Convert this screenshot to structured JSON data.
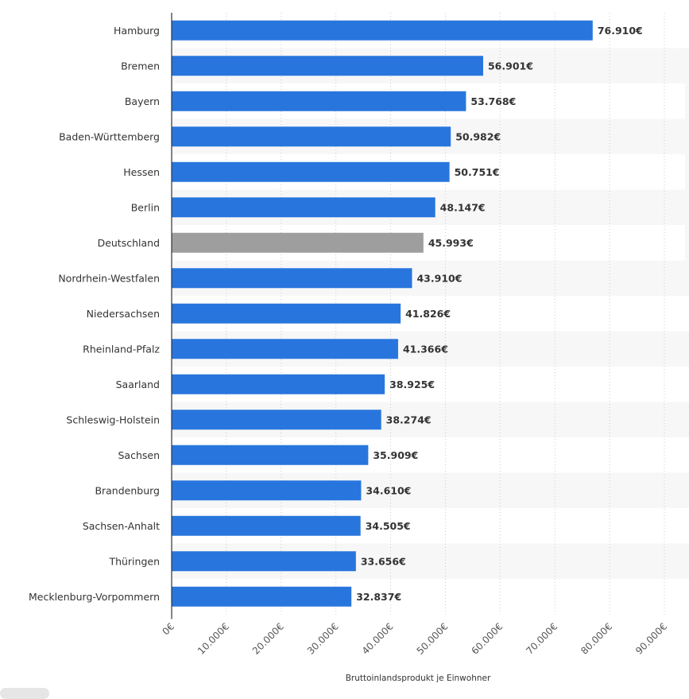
{
  "chart_data": {
    "type": "bar",
    "orientation": "horizontal",
    "categories": [
      "Hamburg",
      "Bremen",
      "Bayern",
      "Baden-Württemberg",
      "Hessen",
      "Berlin",
      "Deutschland",
      "Nordrhein-Westfalen",
      "Niedersachsen",
      "Rheinland-Pfalz",
      "Saarland",
      "Schleswig-Holstein",
      "Sachsen",
      "Brandenburg",
      "Sachsen-Anhalt",
      "Thüringen",
      "Mecklenburg-Vorpommern"
    ],
    "values": [
      76910,
      56901,
      53768,
      50982,
      50751,
      48147,
      45993,
      43910,
      41826,
      41366,
      38925,
      38274,
      35909,
      34610,
      34505,
      33656,
      32837
    ],
    "value_labels": [
      "76.910€",
      "56.901€",
      "53.768€",
      "50.982€",
      "50.751€",
      "48.147€",
      "45.993€",
      "43.910€",
      "41.826€",
      "41.366€",
      "38.925€",
      "38.274€",
      "35.909€",
      "34.610€",
      "34.505€",
      "33.656€",
      "32.837€"
    ],
    "highlight_category": "Deutschland",
    "xlabel": "Bruttoinlandsprodukt je Einwohner",
    "xlim": [
      0,
      90000
    ],
    "x_ticks": [
      0,
      10000,
      20000,
      30000,
      40000,
      50000,
      60000,
      70000,
      80000,
      90000
    ],
    "x_tick_labels": [
      "0€",
      "10.000€",
      "20.000€",
      "30.000€",
      "40.000€",
      "50.000€",
      "60.000€",
      "70.000€",
      "80.000€",
      "90.000€"
    ],
    "grid": "vertical-dotted",
    "alternating_row_background": true,
    "colors": {
      "bar": "#2876dd",
      "highlight": "#9e9e9e",
      "row_alt": "#f7f7f7",
      "grid": "#cccccc",
      "axis": "#333333"
    }
  }
}
